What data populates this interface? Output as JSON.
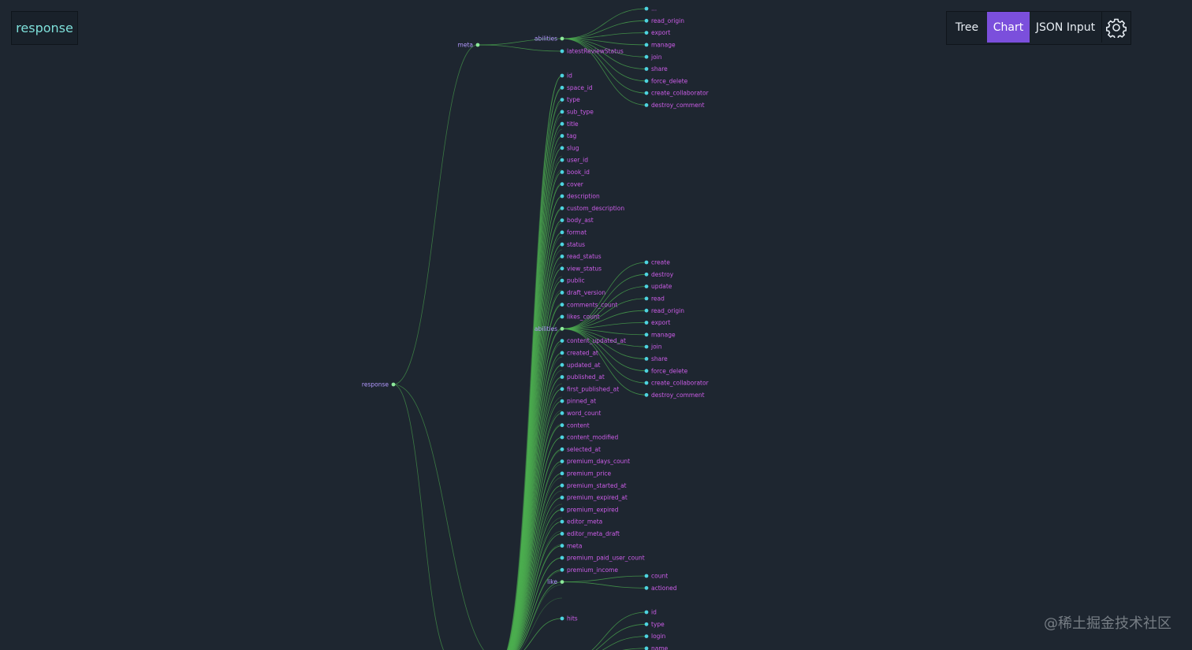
{
  "app": {
    "root_label": "response",
    "watermark": "@稀土掘金技术社区"
  },
  "toolbar": {
    "tree_label": "Tree",
    "chart_label": "Chart",
    "json_label": "JSON Input",
    "active": "Chart"
  },
  "colors": {
    "background": "#1e2630",
    "accent": "#7b4fdc",
    "link": "#4caf50",
    "node_branch": "#8ce99a",
    "node_leaf": "#4dd4e0",
    "label_branch": "#b197fc",
    "label_leaf": "#cc5de8"
  },
  "tree": {
    "root": {
      "label": "response"
    },
    "meta": {
      "label": "meta",
      "children": [
        "abilities",
        "latestReviewStatus"
      ]
    },
    "meta_abilities": [
      "...",
      "read_origin",
      "export",
      "manage",
      "join",
      "share",
      "force_delete",
      "create_collaborator",
      "destroy_comment"
    ],
    "fields": [
      "id",
      "space_id",
      "type",
      "sub_type",
      "title",
      "tag",
      "slug",
      "user_id",
      "book_id",
      "cover",
      "description",
      "custom_description",
      "body_ast",
      "format",
      "status",
      "read_status",
      "view_status",
      "public",
      "draft_version",
      "comments_count",
      "likes_count",
      "abilities",
      "content_updated_at",
      "created_at",
      "updated_at",
      "published_at",
      "first_published_at",
      "pinned_at",
      "word_count",
      "content",
      "content_modified",
      "selected_at",
      "premium_days_count",
      "premium_price",
      "premium_started_at",
      "premium_expired_at",
      "premium_expired",
      "editor_meta",
      "editor_meta_draft",
      "meta",
      "premium_paid_user_count",
      "premium_income",
      "like",
      "hits"
    ],
    "doc_abilities": [
      "create",
      "destroy",
      "update",
      "read",
      "read_origin",
      "export",
      "manage",
      "join",
      "share",
      "force_delete",
      "create_collaborator",
      "destroy_comment"
    ],
    "like": [
      "count",
      "actioned"
    ],
    "user": [
      "id",
      "type",
      "login",
      "name"
    ]
  }
}
